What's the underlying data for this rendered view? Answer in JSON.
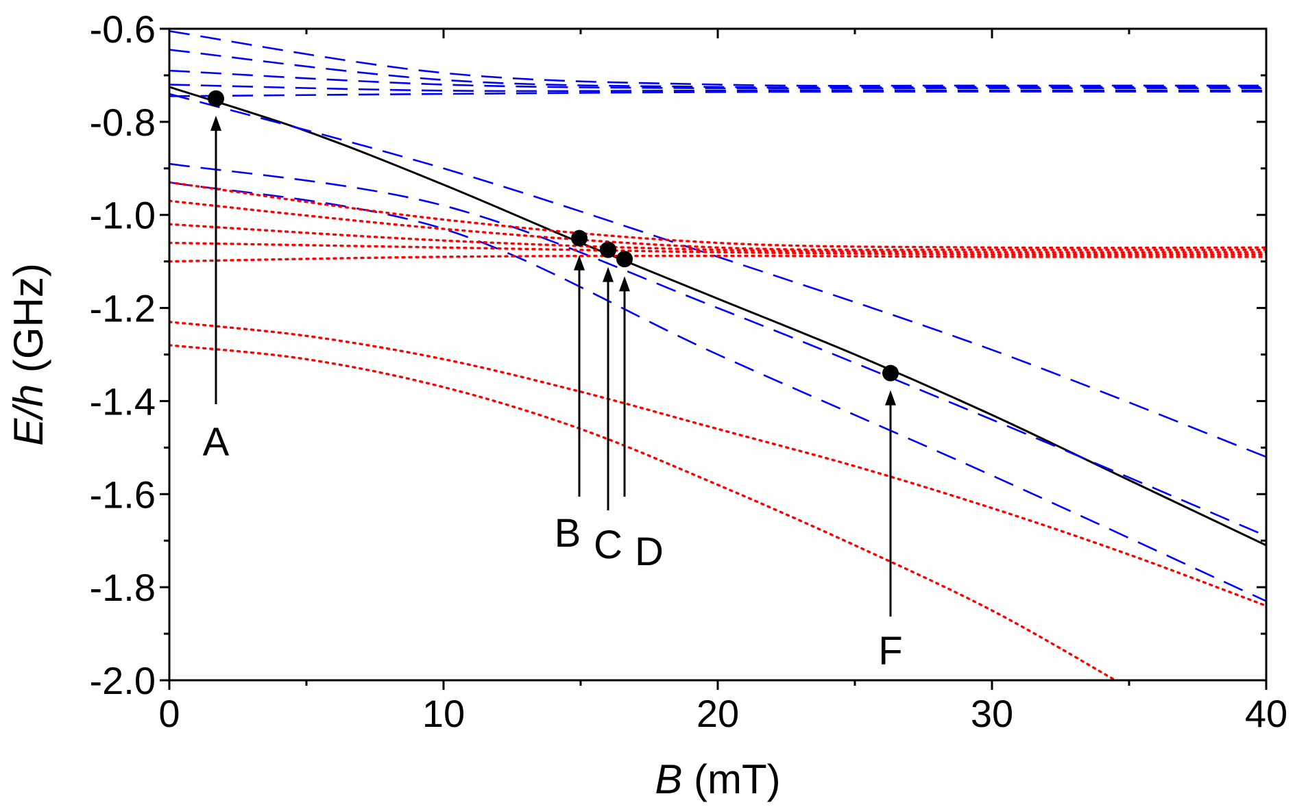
{
  "chart_data": {
    "type": "line",
    "title": "",
    "xlabel_italic": "B",
    "xlabel_rest": " (mT)",
    "ylabel_italic": "E/h",
    "ylabel_rest": " (GHz)",
    "xlim": [
      0,
      40
    ],
    "ylim": [
      -2.0,
      -0.6
    ],
    "xticks": [
      0,
      10,
      20,
      30,
      40
    ],
    "xtick_labels": [
      "0",
      "10",
      "20",
      "30",
      "40"
    ],
    "yticks": [
      -2.0,
      -1.8,
      -1.6,
      -1.4,
      -1.2,
      -1.0,
      -0.8,
      -0.6
    ],
    "ytick_labels": [
      "-2.0",
      "-1.8",
      "-1.6",
      "-1.4",
      "-1.2",
      "-1.0",
      "-0.8",
      "-0.6"
    ],
    "grid": false,
    "colors": {
      "solid": "#000000",
      "dashed": "#0000ff",
      "dotted": "#ff0000"
    },
    "series": [
      {
        "name": "solid-black",
        "style": "solid",
        "x": [
          0,
          5,
          10,
          15,
          20,
          25,
          30,
          35,
          40
        ],
        "y": [
          -0.725,
          -0.82,
          -0.935,
          -1.06,
          -1.18,
          -1.3,
          -1.43,
          -1.57,
          -1.71
        ]
      },
      {
        "name": "dashed-1",
        "style": "dashed",
        "x": [
          0,
          10,
          20,
          30,
          40
        ],
        "y": [
          -0.605,
          -0.695,
          -0.72,
          -0.722,
          -0.722
        ]
      },
      {
        "name": "dashed-2",
        "style": "dashed",
        "x": [
          0,
          10,
          20,
          30,
          40
        ],
        "y": [
          -0.645,
          -0.71,
          -0.725,
          -0.725,
          -0.725
        ]
      },
      {
        "name": "dashed-3",
        "style": "dashed",
        "x": [
          0,
          10,
          20,
          30,
          40
        ],
        "y": [
          -0.69,
          -0.72,
          -0.728,
          -0.728,
          -0.728
        ]
      },
      {
        "name": "dashed-4",
        "style": "dashed",
        "x": [
          0,
          10,
          20,
          30,
          40
        ],
        "y": [
          -0.72,
          -0.733,
          -0.733,
          -0.733,
          -0.733
        ]
      },
      {
        "name": "dashed-5",
        "style": "dashed",
        "x": [
          0,
          10,
          20,
          30,
          40
        ],
        "y": [
          -0.745,
          -0.74,
          -0.736,
          -0.735,
          -0.735
        ]
      },
      {
        "name": "dashed-6",
        "style": "dashed",
        "x": [
          0,
          10,
          20,
          30,
          40
        ],
        "y": [
          -0.74,
          -0.9,
          -1.09,
          -1.29,
          -1.52
        ]
      },
      {
        "name": "dashed-7",
        "style": "dashed",
        "x": [
          0,
          10,
          20,
          30,
          40
        ],
        "y": [
          -0.89,
          -0.98,
          -1.2,
          -1.44,
          -1.69
        ]
      },
      {
        "name": "dashed-8",
        "style": "dashed",
        "x": [
          0,
          10,
          20,
          30,
          40
        ],
        "y": [
          -0.93,
          -1.03,
          -1.3,
          -1.56,
          -1.83
        ]
      },
      {
        "name": "dotted-1",
        "style": "dotted",
        "x": [
          0,
          10,
          20,
          30,
          40
        ],
        "y": [
          -0.93,
          -1.01,
          -1.06,
          -1.07,
          -1.07
        ]
      },
      {
        "name": "dotted-2",
        "style": "dotted",
        "x": [
          0,
          10,
          20,
          30,
          40
        ],
        "y": [
          -0.97,
          -1.03,
          -1.07,
          -1.075,
          -1.075
        ]
      },
      {
        "name": "dotted-3",
        "style": "dotted",
        "x": [
          0,
          10,
          20,
          30,
          40
        ],
        "y": [
          -1.02,
          -1.055,
          -1.075,
          -1.08,
          -1.08
        ]
      },
      {
        "name": "dotted-4",
        "style": "dotted",
        "x": [
          0,
          10,
          20,
          30,
          40
        ],
        "y": [
          -1.06,
          -1.07,
          -1.08,
          -1.085,
          -1.085
        ]
      },
      {
        "name": "dotted-5",
        "style": "dotted",
        "x": [
          0,
          10,
          20,
          30,
          40
        ],
        "y": [
          -1.1,
          -1.09,
          -1.088,
          -1.09,
          -1.09
        ]
      },
      {
        "name": "dotted-6",
        "style": "dotted",
        "x": [
          0,
          5,
          10,
          15,
          20,
          25,
          30,
          35,
          40
        ],
        "y": [
          -1.23,
          -1.26,
          -1.31,
          -1.38,
          -1.46,
          -1.54,
          -1.63,
          -1.73,
          -1.84
        ]
      },
      {
        "name": "dotted-7",
        "style": "dotted",
        "x": [
          0,
          5,
          10,
          15,
          20,
          25,
          30,
          34.5
        ],
        "y": [
          -1.28,
          -1.31,
          -1.37,
          -1.46,
          -1.58,
          -1.71,
          -1.85,
          -2.0
        ]
      }
    ],
    "annotations": [
      {
        "label": "A",
        "x": 1.7,
        "y": -0.75
      },
      {
        "label": "B",
        "x": 14.95,
        "y": -1.05
      },
      {
        "label": "C",
        "x": 16.0,
        "y": -1.075
      },
      {
        "label": "D",
        "x": 16.6,
        "y": -1.095
      },
      {
        "label": "F",
        "x": 26.3,
        "y": -1.34
      }
    ]
  }
}
